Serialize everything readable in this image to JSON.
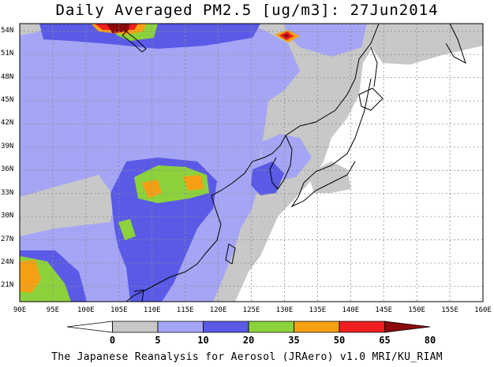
{
  "title": "Daily Averaged PM2.5 [ug/m3]: 27Jun2014",
  "credit": "The Japanese Reanalysis for Aerosol (JRAero) v1.0 MRI/KU_RIAM",
  "lat_labels": [
    "54N",
    "51N",
    "48N",
    "45N",
    "42N",
    "39N",
    "36N",
    "33N",
    "30N",
    "27N",
    "24N",
    "21N"
  ],
  "lon_labels": [
    "90E",
    "95E",
    "100E",
    "105E",
    "110E",
    "115E",
    "120E",
    "125E",
    "130E",
    "135E",
    "140E",
    "145E",
    "150E",
    "155E",
    "160E"
  ],
  "colorbar": {
    "ticks": [
      "0",
      "5",
      "10",
      "20",
      "35",
      "50",
      "65",
      "80"
    ],
    "colors": [
      "#ffffff",
      "#c8c8c8",
      "#a5a5f5",
      "#5a5ae6",
      "#8cd23c",
      "#f5a014",
      "#f01e1e",
      "#8c0a0a"
    ]
  }
}
